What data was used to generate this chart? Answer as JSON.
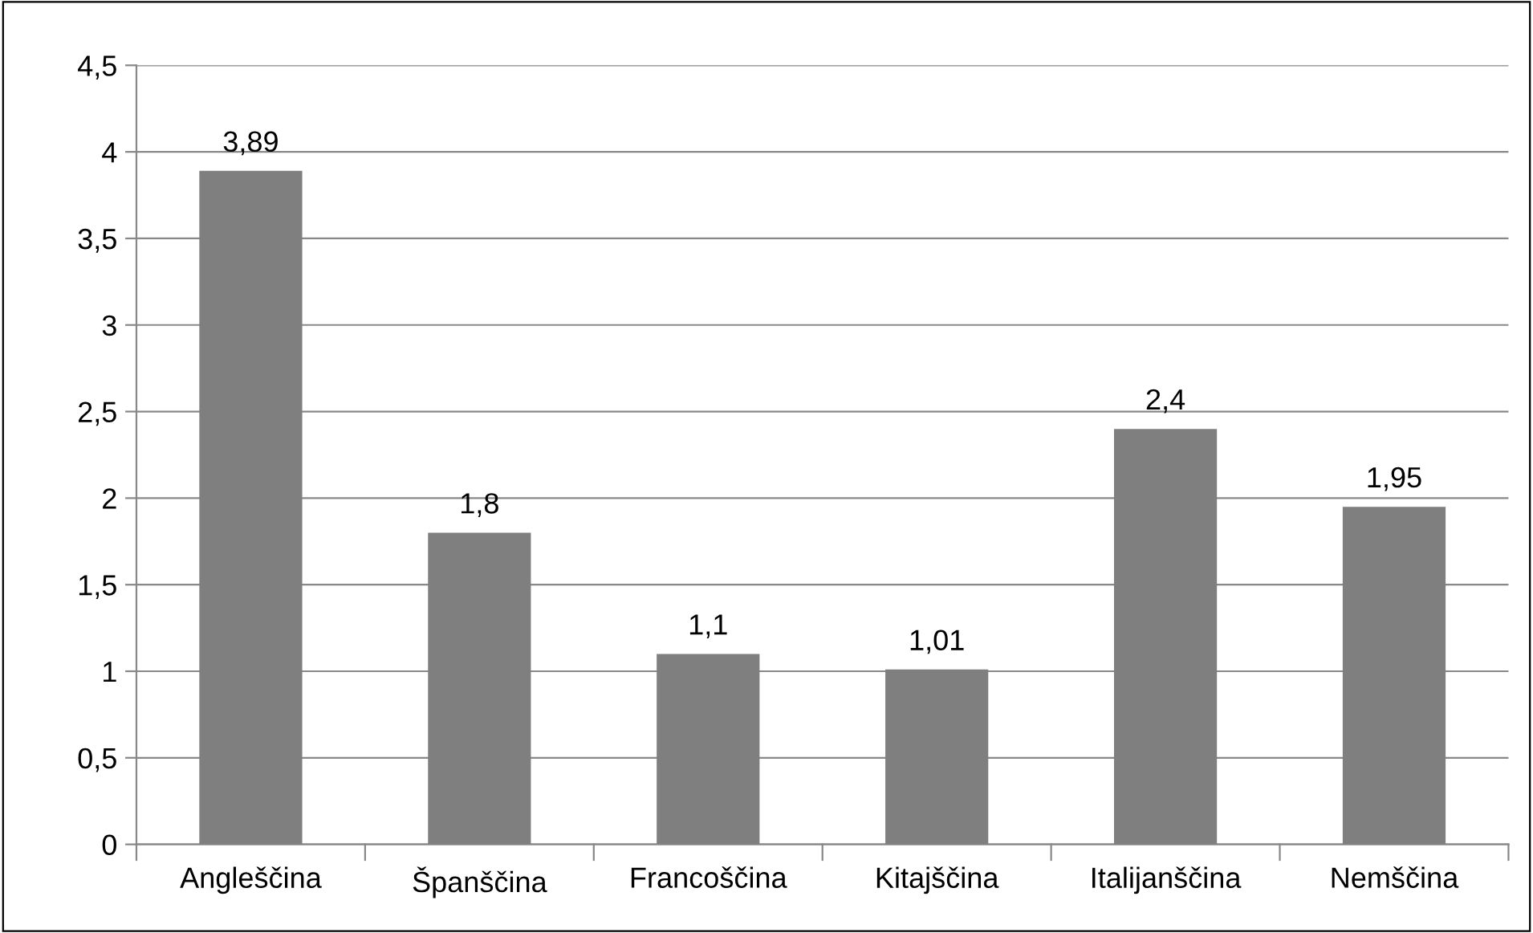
{
  "chart_data": {
    "type": "bar",
    "categories": [
      "Angleščina",
      "Španščina",
      "Francoščina",
      "Kitajščina",
      "Italijanščina",
      "Nemščina"
    ],
    "values": [
      3.89,
      1.8,
      1.1,
      1.01,
      2.4,
      1.95
    ],
    "value_labels": [
      "3,89",
      "1,8",
      "1,1",
      "1,01",
      "2,4",
      "1,95"
    ],
    "color": "#7f7f7f",
    "ylim": [
      0,
      4.5
    ],
    "yticks": [
      0,
      {
        "value": 0.5,
        "label": "0,5"
      },
      1,
      {
        "value": 1.5,
        "label": "1,5"
      },
      2,
      {
        "value": 2.5,
        "label": "2,5"
      },
      3,
      {
        "value": 3.5,
        "label": "3,5"
      },
      4,
      {
        "value": 4.5,
        "label": "4,5"
      }
    ],
    "grid": "y",
    "legend": false
  }
}
